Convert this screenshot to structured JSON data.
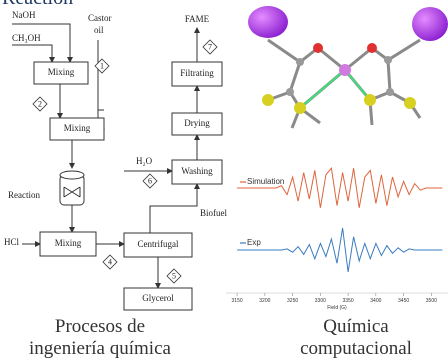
{
  "heading": "Reaction",
  "diagram": {
    "inputs": {
      "naoh": "NaOH",
      "methanol": "CH₃OH",
      "castor": "Castor",
      "oil": "oil",
      "hcl": "HCl",
      "water": "H₂O"
    },
    "units": {
      "mixing1": "Mixing",
      "mixing2": "Mixing",
      "reaction": "Reaction",
      "mixing3": "Mixing",
      "centrifugal": "Centrifugal",
      "glycerol": "Glycerol",
      "washing": "Washing",
      "drying": "Drying",
      "filtrating": "Filtrating"
    },
    "streams": {
      "biofuel": "Biofuel",
      "fame": "FAME"
    },
    "steps": [
      "1",
      "2",
      "4",
      "5",
      "6",
      "7"
    ]
  },
  "chart_data": {
    "type": "line",
    "x_label": "Field (G)",
    "x": [
      3150,
      3220,
      3230,
      3240,
      3250,
      3260,
      3270,
      3280,
      3290,
      3300,
      3310,
      3320,
      3330,
      3340,
      3350,
      3360,
      3370,
      3380,
      3390,
      3400,
      3410,
      3420,
      3430,
      3440,
      3450,
      3460,
      3470,
      3480,
      3490,
      3500,
      3520
    ],
    "series": [
      {
        "name": "Simulation",
        "color": "#e0643c",
        "values": [
          0,
          0,
          0.1,
          -0.3,
          0.5,
          -0.6,
          0.7,
          -0.5,
          0.8,
          -0.9,
          0.6,
          0.9,
          -0.8,
          0.7,
          -0.6,
          0.9,
          -0.9,
          0.5,
          0.8,
          -0.7,
          0.6,
          -0.8,
          0.5,
          -0.4,
          0.3,
          -0.3,
          0.2,
          -0.1,
          0,
          0,
          0
        ]
      },
      {
        "name": "Exp",
        "color": "#3a7cc0",
        "values": [
          0,
          0,
          0,
          0.05,
          -0.1,
          0.15,
          -0.2,
          0.25,
          -0.4,
          0.3,
          -0.3,
          0.5,
          -0.6,
          1,
          -1,
          0.6,
          -0.5,
          0.3,
          -0.4,
          0.3,
          -0.25,
          0.2,
          -0.15,
          0.1,
          -0.1,
          0.05,
          0,
          0,
          0,
          0,
          0
        ]
      }
    ],
    "xlim": [
      3130,
      3530
    ],
    "ylim": [
      -1,
      1
    ],
    "xticks": [
      3150,
      3200,
      3250,
      3300,
      3350,
      3400,
      3450,
      3500
    ]
  },
  "captions": {
    "left": [
      "Procesos de",
      "ingeniería química"
    ],
    "right": [
      "Química",
      "computacional"
    ]
  }
}
